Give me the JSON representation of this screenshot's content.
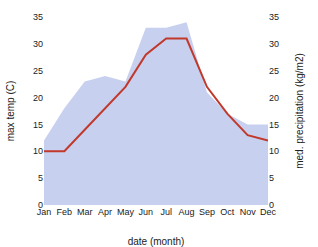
{
  "chart_data": {
    "type": "line",
    "categories": [
      "Jan",
      "Feb",
      "Mar",
      "Apr",
      "May",
      "Jun",
      "Jul",
      "Aug",
      "Sep",
      "Oct",
      "Nov",
      "Dec"
    ],
    "xlabel": "date (month)",
    "ylabel": "max temp (C)",
    "y2label": "med. precipitation (kg/m2)",
    "series": [
      {
        "type": "area",
        "color": "#c8d0f0",
        "axis": "y2",
        "values": [
          12,
          18,
          23,
          24,
          23,
          33,
          33,
          34,
          21,
          17,
          15,
          15
        ]
      },
      {
        "type": "line",
        "color": "#c0392b",
        "values": [
          10,
          10,
          14,
          18,
          22,
          28,
          31,
          31,
          22,
          17,
          13,
          12
        ]
      }
    ],
    "ylim": [
      0,
      35
    ],
    "yticks": [
      0,
      5,
      10,
      15,
      20,
      25,
      30,
      35
    ],
    "y2lim": [
      0,
      35
    ],
    "y2ticks": [
      0,
      5,
      10,
      15,
      20,
      25,
      30,
      35
    ],
    "grid": false
  }
}
